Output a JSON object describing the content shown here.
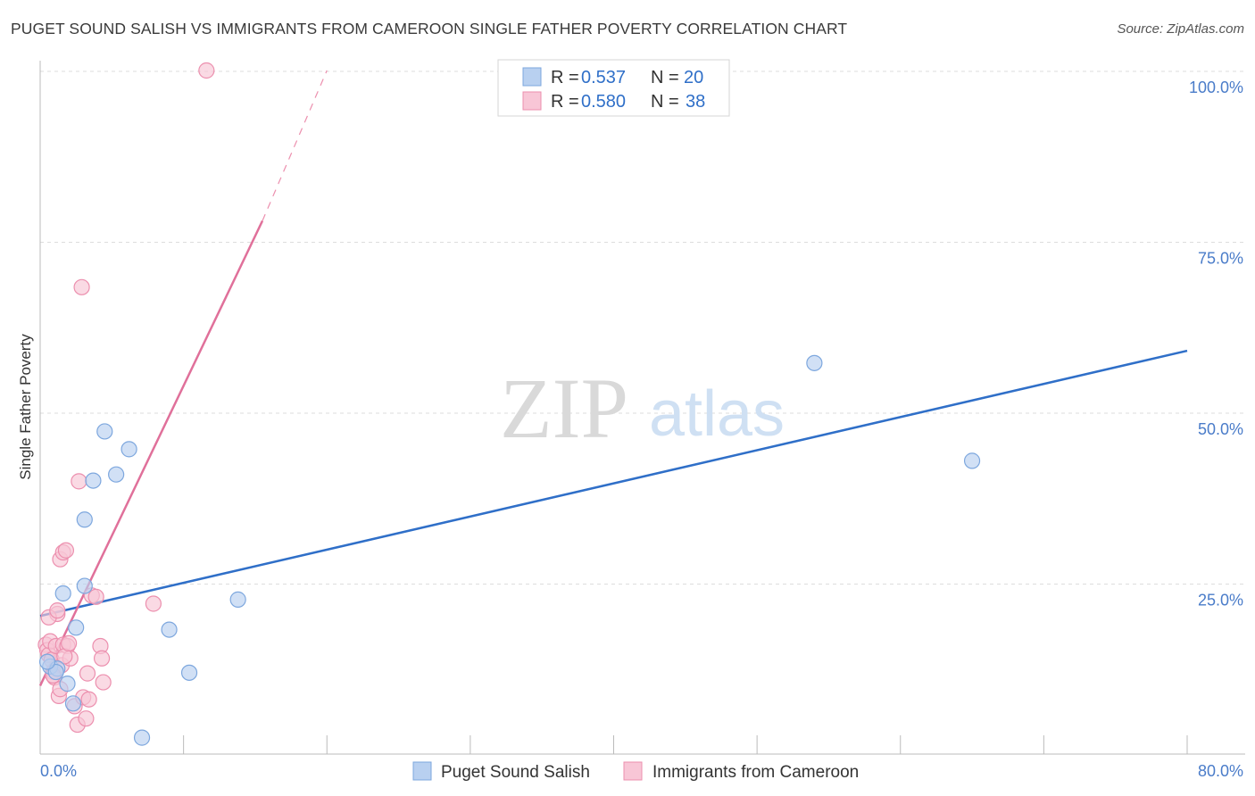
{
  "title": "PUGET SOUND SALISH VS IMMIGRANTS FROM CAMEROON SINGLE FATHER POVERTY CORRELATION CHART",
  "source": "Source: ZipAtlas.com",
  "watermark": {
    "zip": "ZIP",
    "atlas": "atlas"
  },
  "colors": {
    "blue_fill": "#b8d0f0",
    "blue_stroke": "#7da7de",
    "blue_line": "#2f6fc8",
    "pink_fill": "#f8c6d6",
    "pink_stroke": "#ec8fae",
    "pink_line": "#e0709a",
    "grid": "#dddddd",
    "tick_text": "#4a7cc9"
  },
  "legend": {
    "rows": [
      {
        "r_label": "R =",
        "r_value": "0.537",
        "n_label": "N =",
        "n_value": "20",
        "color": "blue"
      },
      {
        "r_label": "R =",
        "r_value": "0.580",
        "n_label": "N =",
        "n_value": "38",
        "color": "pink"
      }
    ]
  },
  "chart_data": {
    "type": "scatter",
    "xlabel": "",
    "ylabel": "Single Father Poverty",
    "xlim": [
      0,
      80
    ],
    "ylim": [
      0,
      100
    ],
    "x_tick_labels": [
      "0.0%",
      "80.0%"
    ],
    "y_ticks": [
      25,
      50,
      75,
      100
    ],
    "y_tick_labels": [
      "25.0%",
      "50.0%",
      "75.0%",
      "100.0%"
    ],
    "grid": true,
    "legend_position": "bottom-center",
    "series": [
      {
        "name": "Puget Sound Salish",
        "color": "blue",
        "points": [
          [
            0.7,
            12.8
          ],
          [
            1.2,
            12.5
          ],
          [
            1.1,
            12.0
          ],
          [
            1.6,
            23.5
          ],
          [
            1.9,
            10.3
          ],
          [
            2.3,
            7.4
          ],
          [
            2.5,
            18.5
          ],
          [
            3.1,
            24.6
          ],
          [
            3.1,
            34.3
          ],
          [
            3.7,
            40.0
          ],
          [
            4.5,
            47.2
          ],
          [
            5.3,
            40.9
          ],
          [
            6.2,
            44.6
          ],
          [
            7.1,
            2.4
          ],
          [
            9.0,
            18.2
          ],
          [
            10.4,
            11.9
          ],
          [
            13.8,
            22.6
          ],
          [
            54.0,
            57.2
          ],
          [
            65.0,
            42.9
          ],
          [
            0.5,
            13.5
          ]
        ],
        "trend": {
          "x0": 0,
          "y0": 20.2,
          "x1": 80,
          "y1": 59.0
        }
      },
      {
        "name": "Immigrants from Cameroon",
        "color": "pink",
        "points": [
          [
            0.4,
            16.0
          ],
          [
            0.5,
            15.2
          ],
          [
            0.6,
            14.5
          ],
          [
            0.7,
            16.5
          ],
          [
            0.8,
            13.8
          ],
          [
            0.9,
            12.0
          ],
          [
            1.0,
            11.2
          ],
          [
            1.1,
            15.8
          ],
          [
            1.2,
            20.5
          ],
          [
            1.3,
            8.5
          ],
          [
            1.4,
            9.5
          ],
          [
            1.5,
            13.0
          ],
          [
            1.6,
            16.0
          ],
          [
            1.4,
            28.5
          ],
          [
            1.6,
            29.5
          ],
          [
            1.8,
            29.8
          ],
          [
            1.9,
            15.8
          ],
          [
            2.1,
            14.0
          ],
          [
            2.4,
            7.0
          ],
          [
            2.6,
            4.3
          ],
          [
            2.9,
            68.3
          ],
          [
            3.0,
            8.3
          ],
          [
            3.2,
            5.2
          ],
          [
            3.3,
            11.8
          ],
          [
            3.4,
            8.0
          ],
          [
            3.6,
            23.2
          ],
          [
            3.9,
            23.0
          ],
          [
            4.2,
            15.8
          ],
          [
            4.3,
            14.0
          ],
          [
            4.4,
            10.5
          ],
          [
            2.7,
            39.9
          ],
          [
            7.9,
            22.0
          ],
          [
            11.6,
            100.0
          ],
          [
            0.6,
            20.0
          ],
          [
            1.2,
            21.0
          ],
          [
            1.7,
            14.3
          ],
          [
            0.9,
            11.5
          ],
          [
            2.0,
            16.2
          ]
        ],
        "trend": {
          "x0": 0,
          "y0": 10.0,
          "x1": 15.5,
          "y1": 78.0
        },
        "trend_dashed": {
          "x0": 15.5,
          "y0": 78.0,
          "x1": 20.0,
          "y1": 100.0
        }
      }
    ]
  }
}
